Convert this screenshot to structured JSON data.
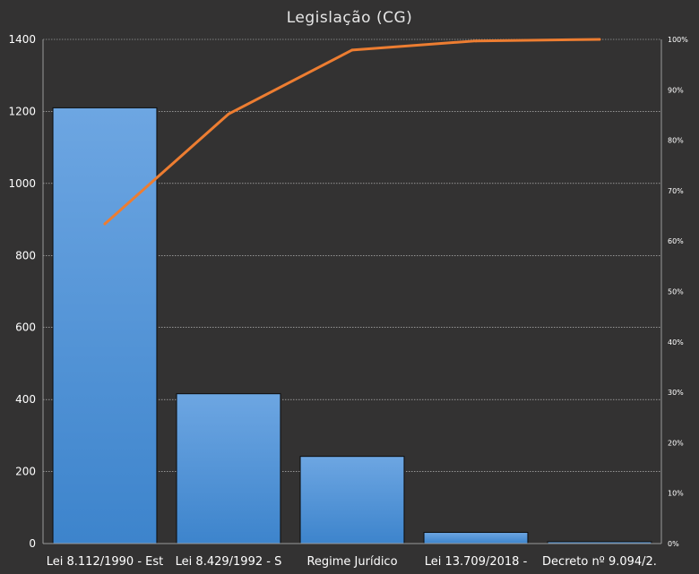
{
  "chart_data": {
    "type": "bar",
    "title": "Legislação (CG)",
    "categories": [
      "Lei 8.112/1990 - Est",
      "Lei 8.429/1992 - S",
      "Regime Jurídico",
      "Lei 13.709/2018 -",
      "Decreto nº 9.094/2."
    ],
    "series": [
      {
        "type": "bar",
        "axis": "left",
        "values": [
          1210,
          416,
          242,
          31,
          5
        ],
        "color": "#4a90d9"
      },
      {
        "type": "line",
        "axis": "right",
        "values": [
          0.634,
          0.852,
          0.979,
          0.997,
          1.0
        ],
        "color": "#ed7d31"
      }
    ],
    "ylim": [
      0,
      1400
    ],
    "y_ticks": [
      "0",
      "200",
      "400",
      "600",
      "800",
      "1000",
      "1200",
      "1400"
    ],
    "y2lim": [
      0,
      1
    ],
    "y2_ticks": [
      "0%",
      "10%",
      "20%",
      "30%",
      "40%",
      "50%",
      "60%",
      "70%",
      "80%",
      "90%",
      "100%"
    ],
    "grid": true
  }
}
